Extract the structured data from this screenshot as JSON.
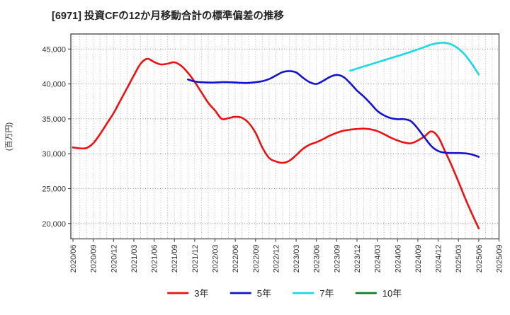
{
  "chart_data": {
    "type": "line",
    "title": "[6971]  投資CFの12か月移動合計の標準偏差の推移",
    "ylabel": "(百万円)",
    "x_start": "2020/06",
    "x_end": "2025/09",
    "x_tick_labels": [
      "2020/06",
      "2020/09",
      "2020/12",
      "2021/03",
      "2021/06",
      "2021/09",
      "2021/12",
      "2022/03",
      "2022/06",
      "2022/09",
      "2022/12",
      "2023/03",
      "2023/06",
      "2023/09",
      "2023/12",
      "2024/03",
      "2024/06",
      "2024/09",
      "2024/12",
      "2025/03",
      "2025/06",
      "2025/09"
    ],
    "yticks": [
      20000,
      25000,
      30000,
      35000,
      40000,
      45000
    ],
    "ylim": [
      17800,
      47200
    ],
    "grid": "dotted gray, monthly vertical lines and horizontal lines every 5000",
    "legend_position": "bottom-center",
    "series": [
      {
        "name": "3年",
        "color": "#ee1111",
        "start_month": "2020/06",
        "monthly_values": [
          30900,
          30780,
          30820,
          31500,
          32800,
          34300,
          35800,
          37600,
          39400,
          41200,
          42900,
          43600,
          43150,
          42800,
          42900,
          43100,
          42600,
          41600,
          40300,
          38800,
          37300,
          36200,
          35000,
          35100,
          35300,
          35150,
          34400,
          33000,
          30900,
          29400,
          28900,
          28700,
          29000,
          29800,
          30700,
          31300,
          31650,
          32100,
          32600,
          33000,
          33300,
          33450,
          33550,
          33600,
          33500,
          33250,
          32800,
          32300,
          31900,
          31600,
          31500,
          31900,
          32500,
          33200,
          32400,
          30400,
          28300,
          26000,
          23600,
          21400,
          19300
        ]
      },
      {
        "name": "5年",
        "color": "#1414cf",
        "start_month": "2021/11",
        "monthly_values": [
          40650,
          40350,
          40250,
          40200,
          40200,
          40250,
          40250,
          40200,
          40150,
          40150,
          40250,
          40400,
          40700,
          41200,
          41700,
          41850,
          41650,
          40900,
          40250,
          40000,
          40450,
          41000,
          41300,
          41000,
          40100,
          39050,
          38200,
          37200,
          36150,
          35500,
          35100,
          34950,
          34950,
          34650,
          33600,
          32300,
          31100,
          30400,
          30150,
          30100,
          30100,
          30050,
          29900,
          29550
        ]
      },
      {
        "name": "7年",
        "color": "#1bd8e4",
        "start_month": "2023/11",
        "monthly_values": [
          41900,
          42200,
          42500,
          42800,
          43100,
          43400,
          43700,
          44000,
          44300,
          44620,
          44950,
          45300,
          45650,
          45850,
          45900,
          45650,
          45050,
          44150,
          42850,
          41350
        ]
      },
      {
        "name": "10年",
        "color": "#0d7e28",
        "start_month": null,
        "monthly_values": []
      }
    ]
  }
}
